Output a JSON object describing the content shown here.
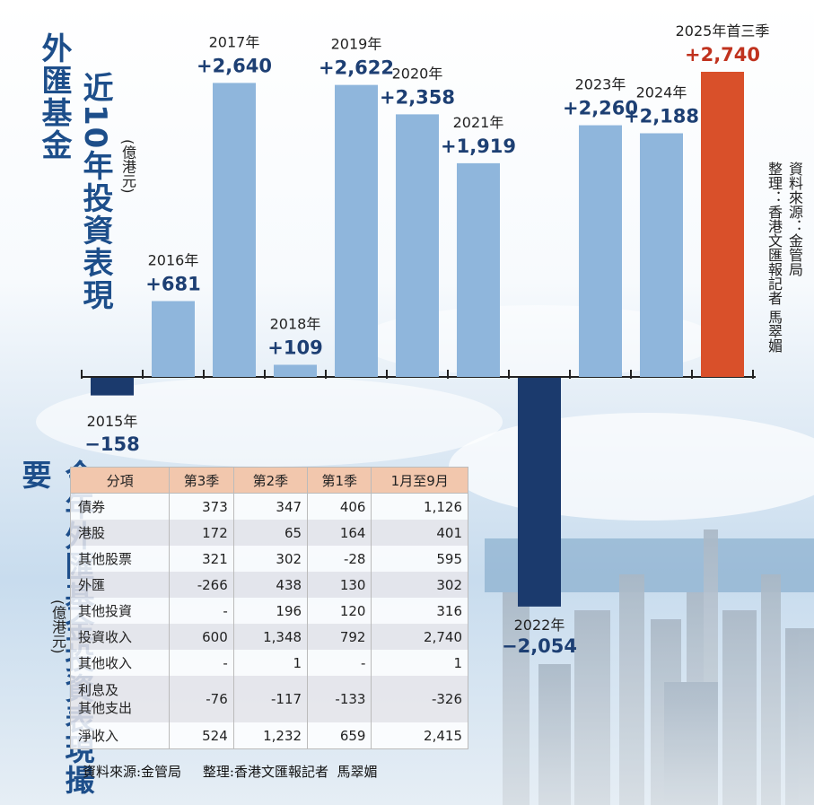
{
  "chart_data": {
    "type": "bar",
    "title": "外匯基金 近10年投資表現",
    "unit": "(億港元)",
    "categories": [
      "2015年",
      "2016年",
      "2017年",
      "2018年",
      "2019年",
      "2020年",
      "2021年",
      "2022年",
      "2023年",
      "2024年",
      "2025年首三季"
    ],
    "values": [
      -158,
      681,
      2640,
      109,
      2622,
      2358,
      1919,
      -2054,
      2260,
      2188,
      2740
    ],
    "value_labels": [
      "−158",
      "+681",
      "+2,640",
      "+109",
      "+2,622",
      "+2,358",
      "+1,919",
      "−2,054",
      "+2,260",
      "+2,188",
      "+2,740"
    ],
    "colors": {
      "positive": "#8fb6dc",
      "negative": "#1b3a6d",
      "highlight": "#d9502a",
      "label_dark": "#1d3f73",
      "label_highlight": "#c0321e"
    }
  },
  "titles": {
    "main": "外匯基金",
    "sub": "近10年投資表現",
    "unit": "(億港元)",
    "table_title": "今年外匯基金投資表現撮要",
    "table_unit": "(億港元)"
  },
  "source_right": {
    "line1": "資料來源：金管局",
    "line2": "整理：香港文匯報記者 馬翠媚"
  },
  "table": {
    "headers": [
      "分項",
      "第3季",
      "第2季",
      "第1季",
      "1月至9月"
    ],
    "rows": [
      [
        "債券",
        "373",
        "347",
        "406",
        "1,126"
      ],
      [
        "港股",
        "172",
        "65",
        "164",
        "401"
      ],
      [
        "其他股票",
        "321",
        "302",
        "-28",
        "595"
      ],
      [
        "外匯",
        "-266",
        "438",
        "130",
        "302"
      ],
      [
        "其他投資",
        "-",
        "196",
        "120",
        "316"
      ],
      [
        "投資收入",
        "600",
        "1,348",
        "792",
        "2,740"
      ],
      [
        "其他收入",
        "-",
        "1",
        "-",
        "1"
      ],
      [
        "利息及\n其他支出",
        "-76",
        "-117",
        "-133",
        "-326"
      ],
      [
        "淨收入",
        "524",
        "1,232",
        "659",
        "2,415"
      ]
    ]
  },
  "source_bottom": "資料來源:金管局     整理:香港文匯報記者  馬翠媚"
}
